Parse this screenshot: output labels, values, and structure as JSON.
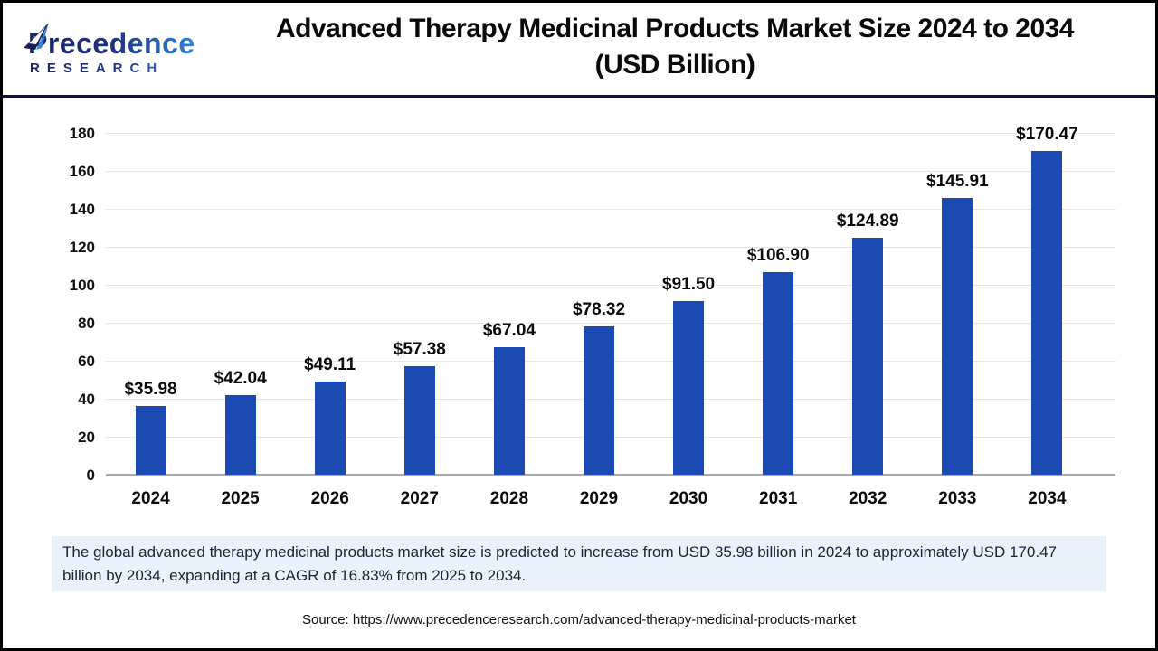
{
  "logo": {
    "name": "Precedence",
    "subtitle": "RESEARCH"
  },
  "header": {
    "title_line1": "Advanced Therapy Medicinal Products Market Size 2024 to 2034",
    "title_line2": "(USD Billion)"
  },
  "chart_data": {
    "type": "bar",
    "title": "Advanced Therapy Medicinal Products Market Size 2024 to 2034 (USD Billion)",
    "categories": [
      "2024",
      "2025",
      "2026",
      "2027",
      "2028",
      "2029",
      "2030",
      "2031",
      "2032",
      "2033",
      "2034"
    ],
    "values": [
      35.98,
      42.04,
      49.11,
      57.38,
      67.04,
      78.32,
      91.5,
      106.9,
      124.89,
      145.91,
      170.47
    ],
    "value_labels": [
      "$35.98",
      "$42.04",
      "$49.11",
      "$57.38",
      "$67.04",
      "$78.32",
      "$91.50",
      "$106.90",
      "$124.89",
      "$145.91",
      "$170.47"
    ],
    "xlabel": "",
    "ylabel": "",
    "ylim": [
      0,
      180
    ],
    "ytick_step": 20,
    "grid": true,
    "legend": false
  },
  "summary": {
    "text": "The global advanced therapy medicinal products market size is predicted to increase from USD 35.98 billion in 2024 to approximately USD 170.47 billion by 2034, expanding at a CAGR of 16.83% from 2025 to 2034."
  },
  "source": {
    "text": "Source: https://www.precedenceresearch.com/advanced-therapy-medicinal-products-market"
  },
  "colors": {
    "bar": "#1a4ab2",
    "grid": "#e7e7e7",
    "axis_line": "#a9a9a9",
    "summary_bg": "#e9f1fb",
    "header_divider": "#13133f",
    "logo_dark": "#1d2467",
    "logo_light": "#2f85dd"
  }
}
